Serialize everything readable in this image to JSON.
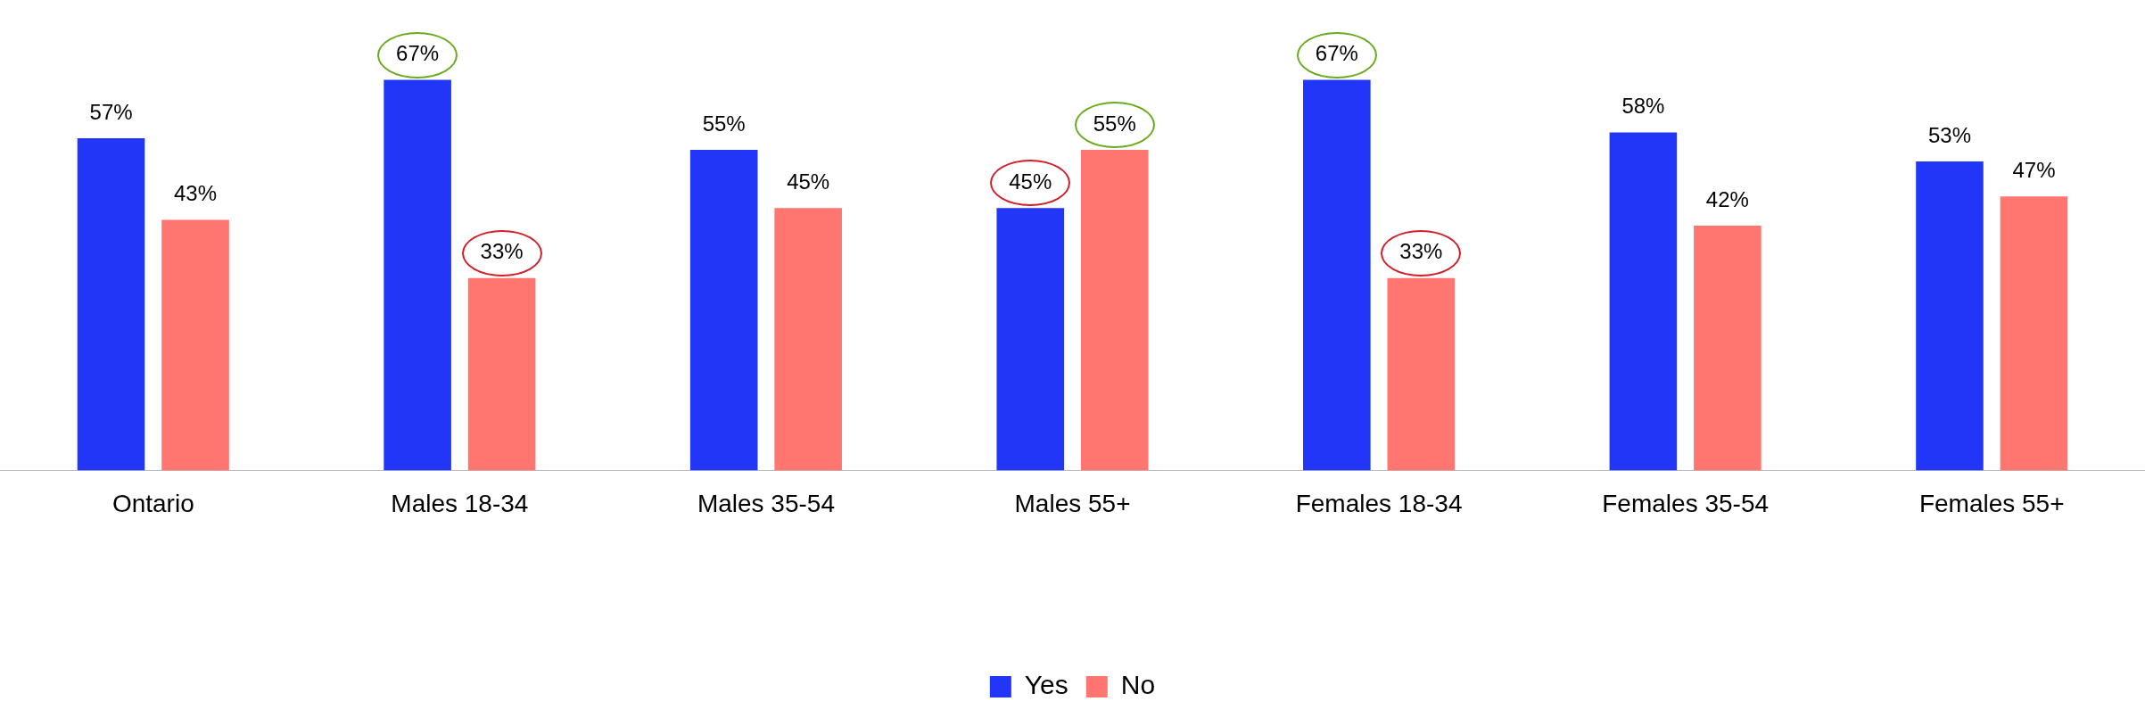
{
  "chart_data": {
    "type": "bar",
    "categories": [
      "Ontario",
      "Males 18-34",
      "Males 35-54",
      "Males 55+",
      "Females 18-34",
      "Females 35-54",
      "Females 55+"
    ],
    "series": [
      {
        "name": "Yes",
        "color": "#2236f7",
        "values": [
          57,
          67,
          55,
          45,
          67,
          58,
          53
        ],
        "value_labels": [
          "57%",
          "67%",
          "55%",
          "45%",
          "67%",
          "58%",
          "53%"
        ]
      },
      {
        "name": "No",
        "color": "#ff7670",
        "values": [
          43,
          33,
          45,
          55,
          33,
          42,
          47
        ],
        "value_labels": [
          "43%",
          "33%",
          "45%",
          "55%",
          "33%",
          "42%",
          "47%"
        ]
      }
    ],
    "legend": "bottom",
    "grid": false
  }
}
